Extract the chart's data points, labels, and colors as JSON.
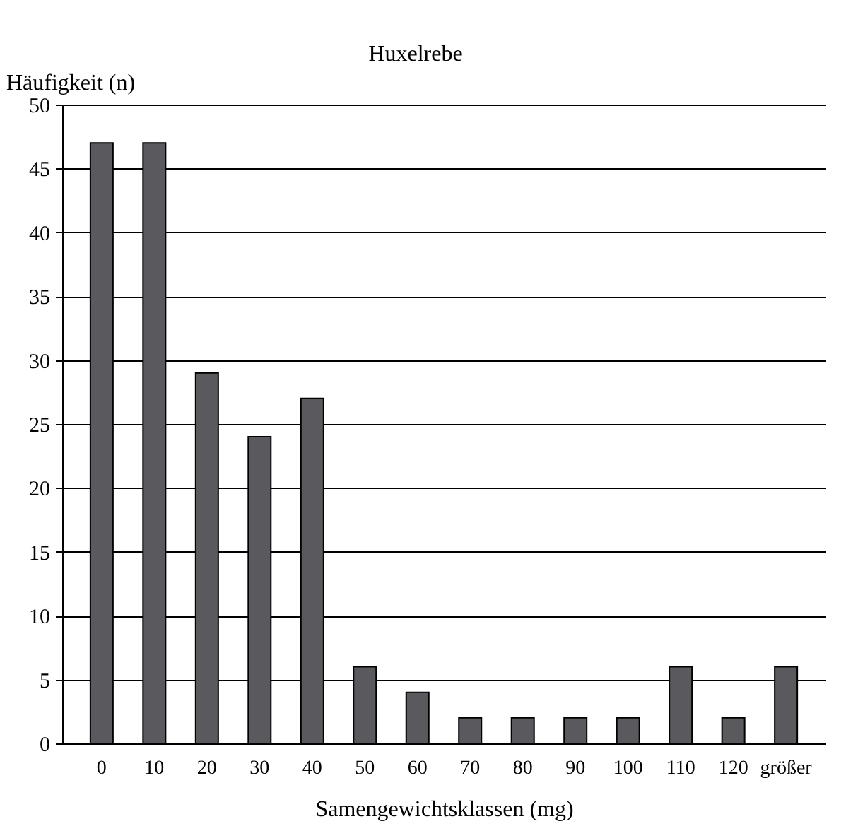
{
  "chart_data": {
    "type": "bar",
    "title": "Huxelrebe",
    "ylabel": "Häufigkeit (n)",
    "xlabel": "Samengewichtsklassen (mg)",
    "categories": [
      "0",
      "10",
      "20",
      "30",
      "40",
      "50",
      "60",
      "70",
      "80",
      "90",
      "100",
      "110",
      "120",
      "größer"
    ],
    "values": [
      47,
      47,
      29,
      24,
      27,
      6,
      4,
      2,
      2,
      2,
      2,
      6,
      2,
      6
    ],
    "color": "#5a5a5e",
    "ylim": [
      0,
      50
    ],
    "yticks": [
      0,
      5,
      10,
      15,
      20,
      25,
      30,
      35,
      40,
      45,
      50
    ],
    "grid": "y"
  }
}
